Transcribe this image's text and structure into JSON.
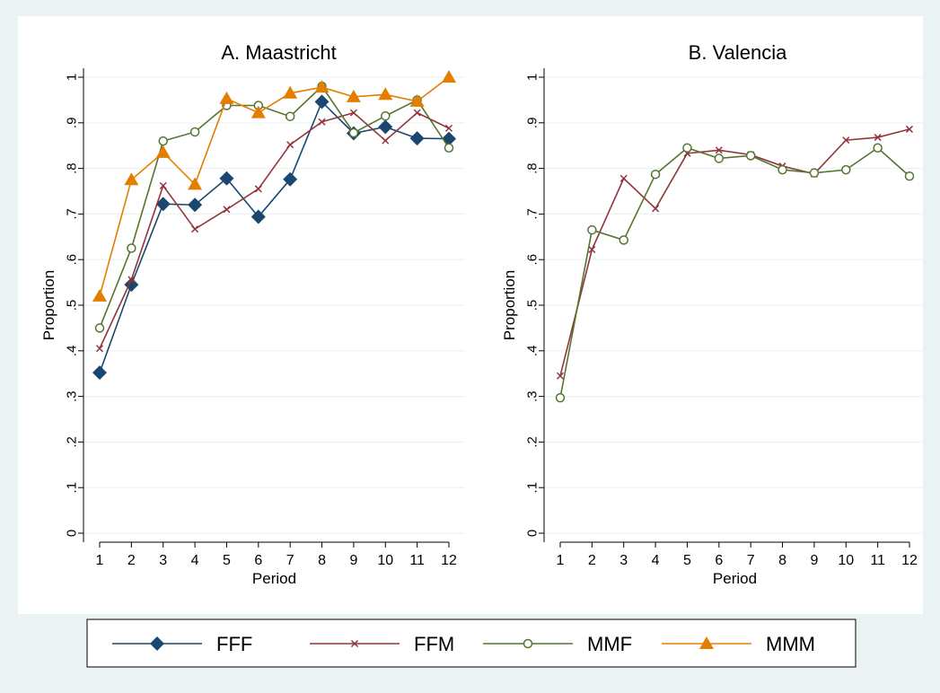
{
  "chart_data": [
    {
      "type": "line",
      "title": "A. Maastricht",
      "xlabel": "Period",
      "ylabel": "Proportion",
      "x": [
        1,
        2,
        3,
        4,
        5,
        6,
        7,
        8,
        9,
        10,
        11,
        12
      ],
      "xticklabels": [
        "1",
        "2",
        "3",
        "4",
        "5",
        "6",
        "7",
        "8",
        "9",
        "10",
        "11",
        "12"
      ],
      "ylim": [
        0,
        1
      ],
      "yticks": [
        0,
        0.1,
        0.2,
        0.3,
        0.4,
        0.5,
        0.6,
        0.7,
        0.8,
        0.9,
        1
      ],
      "yticklabels": [
        "0",
        ".1",
        ".2",
        ".3",
        ".4",
        ".5",
        ".6",
        ".7",
        ".8",
        ".9",
        "1"
      ],
      "grid": true,
      "series": [
        {
          "name": "FFF",
          "color": "#1a476f",
          "marker": "diamond",
          "values": [
            0.352,
            0.545,
            0.722,
            0.72,
            0.778,
            0.694,
            0.776,
            0.946,
            0.877,
            0.891,
            0.866,
            0.865
          ]
        },
        {
          "name": "FFM",
          "color": "#90353b",
          "marker": "x",
          "values": [
            0.405,
            0.556,
            0.762,
            0.667,
            0.71,
            0.755,
            0.852,
            0.902,
            0.922,
            0.861,
            0.922,
            0.888
          ]
        },
        {
          "name": "MMF",
          "color": "#55752f",
          "marker": "circle",
          "values": [
            0.45,
            0.625,
            0.86,
            0.88,
            0.938,
            0.938,
            0.914,
            0.98,
            0.878,
            0.915,
            0.95,
            0.845
          ]
        },
        {
          "name": "MMM",
          "color": "#e37e00",
          "marker": "triangle",
          "values": [
            0.52,
            0.775,
            0.835,
            0.765,
            0.953,
            0.922,
            0.965,
            0.978,
            0.957,
            0.962,
            0.947,
            1.0
          ]
        }
      ]
    },
    {
      "type": "line",
      "title": "B. Valencia",
      "xlabel": "Period",
      "ylabel": "Proportion",
      "x": [
        1,
        2,
        3,
        4,
        5,
        6,
        7,
        8,
        9,
        10,
        11,
        12
      ],
      "xticklabels": [
        "1",
        "2",
        "3",
        "4",
        "5",
        "6",
        "7",
        "8",
        "9",
        "10",
        "11",
        "12"
      ],
      "ylim": [
        0,
        1
      ],
      "yticks": [
        0,
        0.1,
        0.2,
        0.3,
        0.4,
        0.5,
        0.6,
        0.7,
        0.8,
        0.9,
        1
      ],
      "yticklabels": [
        "0",
        ".1",
        ".2",
        ".3",
        ".4",
        ".5",
        ".6",
        ".7",
        ".8",
        ".9",
        "1"
      ],
      "grid": true,
      "series": [
        {
          "name": "FFM",
          "color": "#90353b",
          "marker": "x",
          "values": [
            0.345,
            0.622,
            0.778,
            0.712,
            0.833,
            0.84,
            0.83,
            0.805,
            0.788,
            0.862,
            0.868,
            0.886
          ]
        },
        {
          "name": "MMF",
          "color": "#55752f",
          "marker": "circle",
          "values": [
            0.297,
            0.665,
            0.643,
            0.787,
            0.845,
            0.822,
            0.828,
            0.797,
            0.79,
            0.797,
            0.845,
            0.783
          ]
        }
      ]
    }
  ],
  "legend": {
    "placement": "bottom",
    "items": [
      {
        "label": "FFF",
        "color": "#1a476f",
        "marker": "diamond"
      },
      {
        "label": "FFM",
        "color": "#90353b",
        "marker": "x"
      },
      {
        "label": "MMF",
        "color": "#55752f",
        "marker": "circle"
      },
      {
        "label": "MMM",
        "color": "#e37e00",
        "marker": "triangle"
      }
    ]
  },
  "colors": {
    "page_background": "#eaf2f3",
    "plot_background": "#ffffff",
    "grid": "#eaf2f3"
  }
}
